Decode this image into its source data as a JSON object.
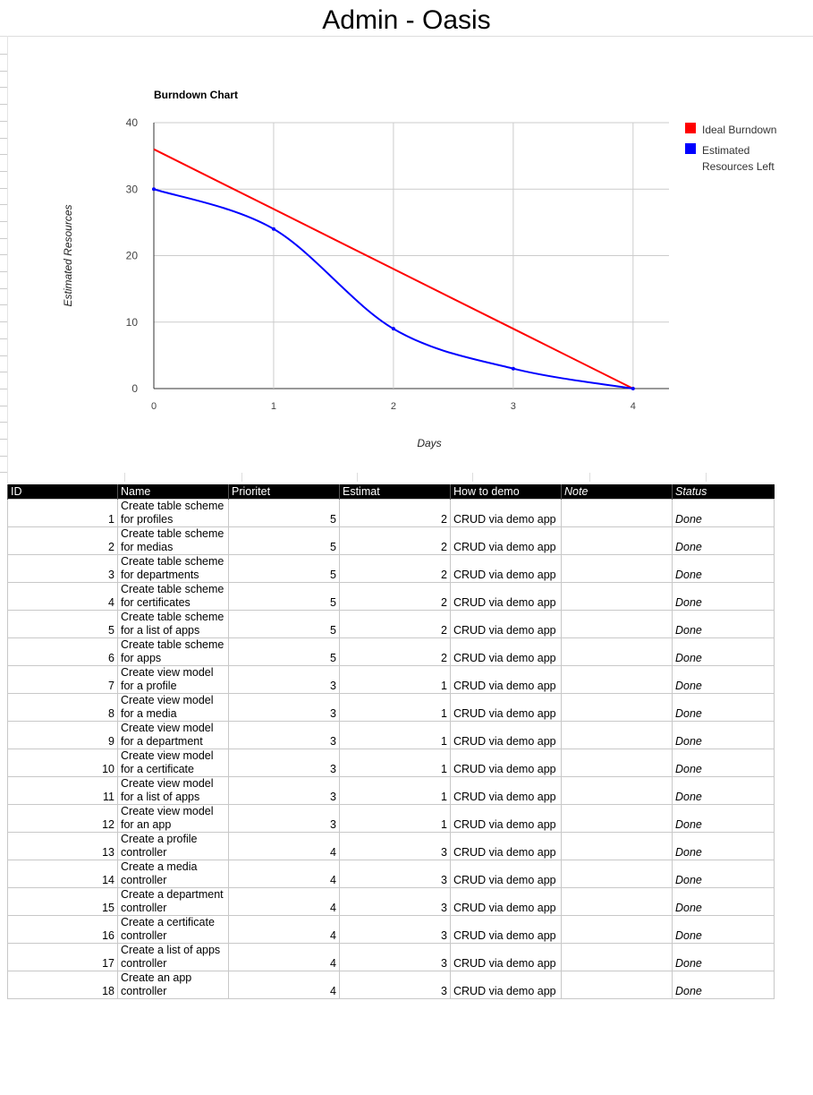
{
  "title": "Admin - Oasis",
  "chart_data": {
    "type": "line",
    "title": "Burndown Chart",
    "xlabel": "Days",
    "ylabel": "Estimated Resources",
    "x": [
      0,
      1,
      2,
      3,
      4
    ],
    "xlim": [
      0,
      4.3
    ],
    "ylim": [
      0,
      40
    ],
    "yticks": [
      0,
      10,
      20,
      30,
      40
    ],
    "grid": true,
    "legend": "right",
    "series": [
      {
        "name": "Ideal Burndown",
        "color": "#ff0000",
        "values": [
          36,
          27,
          18,
          9,
          0
        ]
      },
      {
        "name": "Estimated Resources Left",
        "color": "#0000ff",
        "values": [
          30,
          24,
          9,
          3,
          0
        ]
      }
    ]
  },
  "table": {
    "headers": [
      "ID",
      "Name",
      "Prioritet",
      "Estimat",
      "How to demo",
      "Note",
      "Status"
    ],
    "rows": [
      {
        "id": "1",
        "name": "Create table scheme for profiles",
        "prio": "5",
        "est": "2",
        "demo": "CRUD via demo app",
        "note": "",
        "status": "Done"
      },
      {
        "id": "2",
        "name": "Create table scheme for medias",
        "prio": "5",
        "est": "2",
        "demo": "CRUD via demo app",
        "note": "",
        "status": "Done"
      },
      {
        "id": "3",
        "name": "Create table scheme for departments",
        "prio": "5",
        "est": "2",
        "demo": "CRUD via demo app",
        "note": "",
        "status": "Done"
      },
      {
        "id": "4",
        "name": "Create table scheme for certificates",
        "prio": "5",
        "est": "2",
        "demo": "CRUD via demo app",
        "note": "",
        "status": "Done"
      },
      {
        "id": "5",
        "name": "Create table scheme for a list of apps",
        "prio": "5",
        "est": "2",
        "demo": "CRUD via demo app",
        "note": "",
        "status": "Done"
      },
      {
        "id": "6",
        "name": "Create table scheme for apps",
        "prio": "5",
        "est": "2",
        "demo": "CRUD via demo app",
        "note": "",
        "status": "Done"
      },
      {
        "id": "7",
        "name": "Create view model for a profile",
        "prio": "3",
        "est": "1",
        "demo": "CRUD via demo app",
        "note": "",
        "status": "Done"
      },
      {
        "id": "8",
        "name": "Create view model for a media",
        "prio": "3",
        "est": "1",
        "demo": "CRUD via demo app",
        "note": "",
        "status": "Done"
      },
      {
        "id": "9",
        "name": "Create view model for a department",
        "prio": "3",
        "est": "1",
        "demo": "CRUD via demo app",
        "note": "",
        "status": "Done"
      },
      {
        "id": "10",
        "name": "Create view model for a certificate",
        "prio": "3",
        "est": "1",
        "demo": "CRUD via demo app",
        "note": "",
        "status": "Done"
      },
      {
        "id": "11",
        "name": "Create view model for a list of apps",
        "prio": "3",
        "est": "1",
        "demo": "CRUD via demo app",
        "note": "",
        "status": "Done"
      },
      {
        "id": "12",
        "name": "Create view model for an app",
        "prio": "3",
        "est": "1",
        "demo": "CRUD via demo app",
        "note": "",
        "status": "Done"
      },
      {
        "id": "13",
        "name": "Create a profile controller",
        "prio": "4",
        "est": "3",
        "demo": "CRUD via demo app",
        "note": "",
        "status": "Done"
      },
      {
        "id": "14",
        "name": "Create a media controller",
        "prio": "4",
        "est": "3",
        "demo": "CRUD via demo app",
        "note": "",
        "status": "Done"
      },
      {
        "id": "15",
        "name": "Create a department controller",
        "prio": "4",
        "est": "3",
        "demo": "CRUD via demo app",
        "note": "",
        "status": "Done"
      },
      {
        "id": "16",
        "name": "Create a certificate controller",
        "prio": "4",
        "est": "3",
        "demo": "CRUD via demo app",
        "note": "",
        "status": "Done"
      },
      {
        "id": "17",
        "name": "Create a list of apps controller",
        "prio": "4",
        "est": "3",
        "demo": "CRUD via demo app",
        "note": "",
        "status": "Done"
      },
      {
        "id": "18",
        "name": "Create an app controller",
        "prio": "4",
        "est": "3",
        "demo": "CRUD via demo app",
        "note": "",
        "status": "Done"
      }
    ]
  }
}
